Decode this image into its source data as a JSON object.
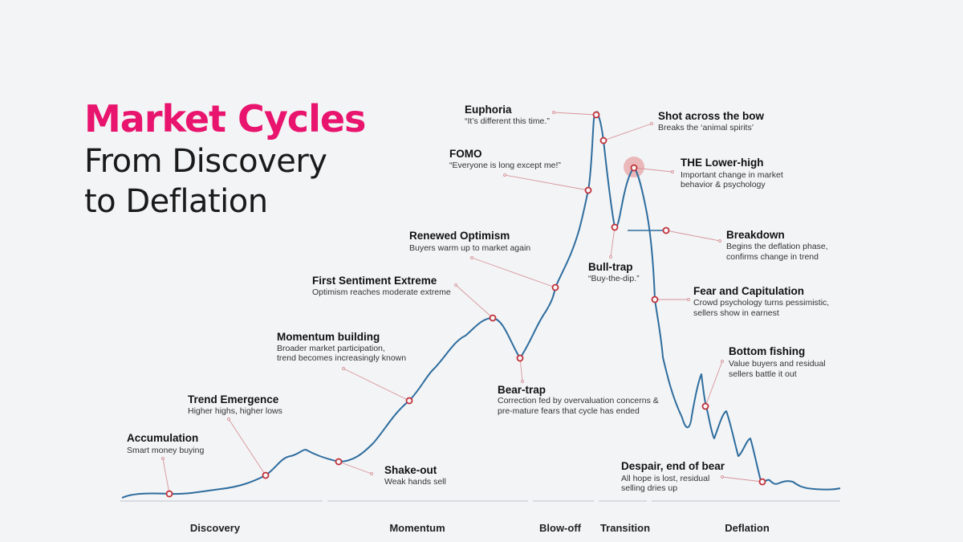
{
  "title": {
    "main": "Market Cycles",
    "sub_line1": "From Discovery",
    "sub_line2": "to Deflation"
  },
  "annotations": [
    {
      "id": "accumulation",
      "title": "Accumulation",
      "desc": [
        "Smart money buying"
      ]
    },
    {
      "id": "trend-emergence",
      "title": "Trend Emergence",
      "desc": [
        "Higher highs, higher lows"
      ]
    },
    {
      "id": "shake-out",
      "title": "Shake-out",
      "desc": [
        "Weak hands sell"
      ]
    },
    {
      "id": "momentum-building",
      "title": "Momentum building",
      "desc": [
        "Broader market participation,",
        "trend becomes increasingly known"
      ]
    },
    {
      "id": "first-sentiment-extreme",
      "title": "First Sentiment Extreme",
      "desc": [
        "Optimism reaches moderate extreme"
      ]
    },
    {
      "id": "bear-trap",
      "title": "Bear-trap",
      "desc": [
        "Correction fed by overvaluation concerns &",
        "pre-mature fears that cycle has ended"
      ]
    },
    {
      "id": "renewed-optimism",
      "title": "Renewed Optimism",
      "desc": [
        "Buyers warm up to market again"
      ]
    },
    {
      "id": "fomo",
      "title": "FOMO",
      "desc": [
        "“Everyone is long except me!”"
      ]
    },
    {
      "id": "euphoria",
      "title": "Euphoria",
      "desc": [
        "“It’s different this time.”"
      ]
    },
    {
      "id": "shot-across-the-bow",
      "title": "Shot across the bow",
      "desc": [
        "Breaks the ‘animal spirits’"
      ]
    },
    {
      "id": "bull-trap",
      "title": "Bull-trap",
      "desc": [
        "“Buy-the-dip.”"
      ]
    },
    {
      "id": "the-lower-high",
      "title": "THE Lower-high",
      "desc": [
        "Important change in market",
        "behavior & psychology"
      ]
    },
    {
      "id": "breakdown",
      "title": "Breakdown",
      "desc": [
        "Begins the deflation phase,",
        "confirms change in trend"
      ]
    },
    {
      "id": "fear-and-capitulation",
      "title": "Fear and Capitulation",
      "desc": [
        "Crowd psychology turns pessimistic,",
        "sellers show in earnest"
      ]
    },
    {
      "id": "bottom-fishing",
      "title": "Bottom fishing",
      "desc": [
        "Value buyers and residual",
        "sellers battle it out"
      ]
    },
    {
      "id": "despair-end-of-bear",
      "title": "Despair, end of bear",
      "desc": [
        "All hope is lost, residual",
        "selling dries up"
      ]
    }
  ],
  "phases": [
    "Discovery",
    "Momentum",
    "Blow-off",
    "Transition",
    "Deflation"
  ],
  "colors": {
    "title_accent": "#e8146e",
    "curve": "#2e6d9e",
    "marker": "#c0303a",
    "leader": "#d7959b",
    "axis": "#c8cdd3",
    "highlight": "#e8a4a6"
  }
}
